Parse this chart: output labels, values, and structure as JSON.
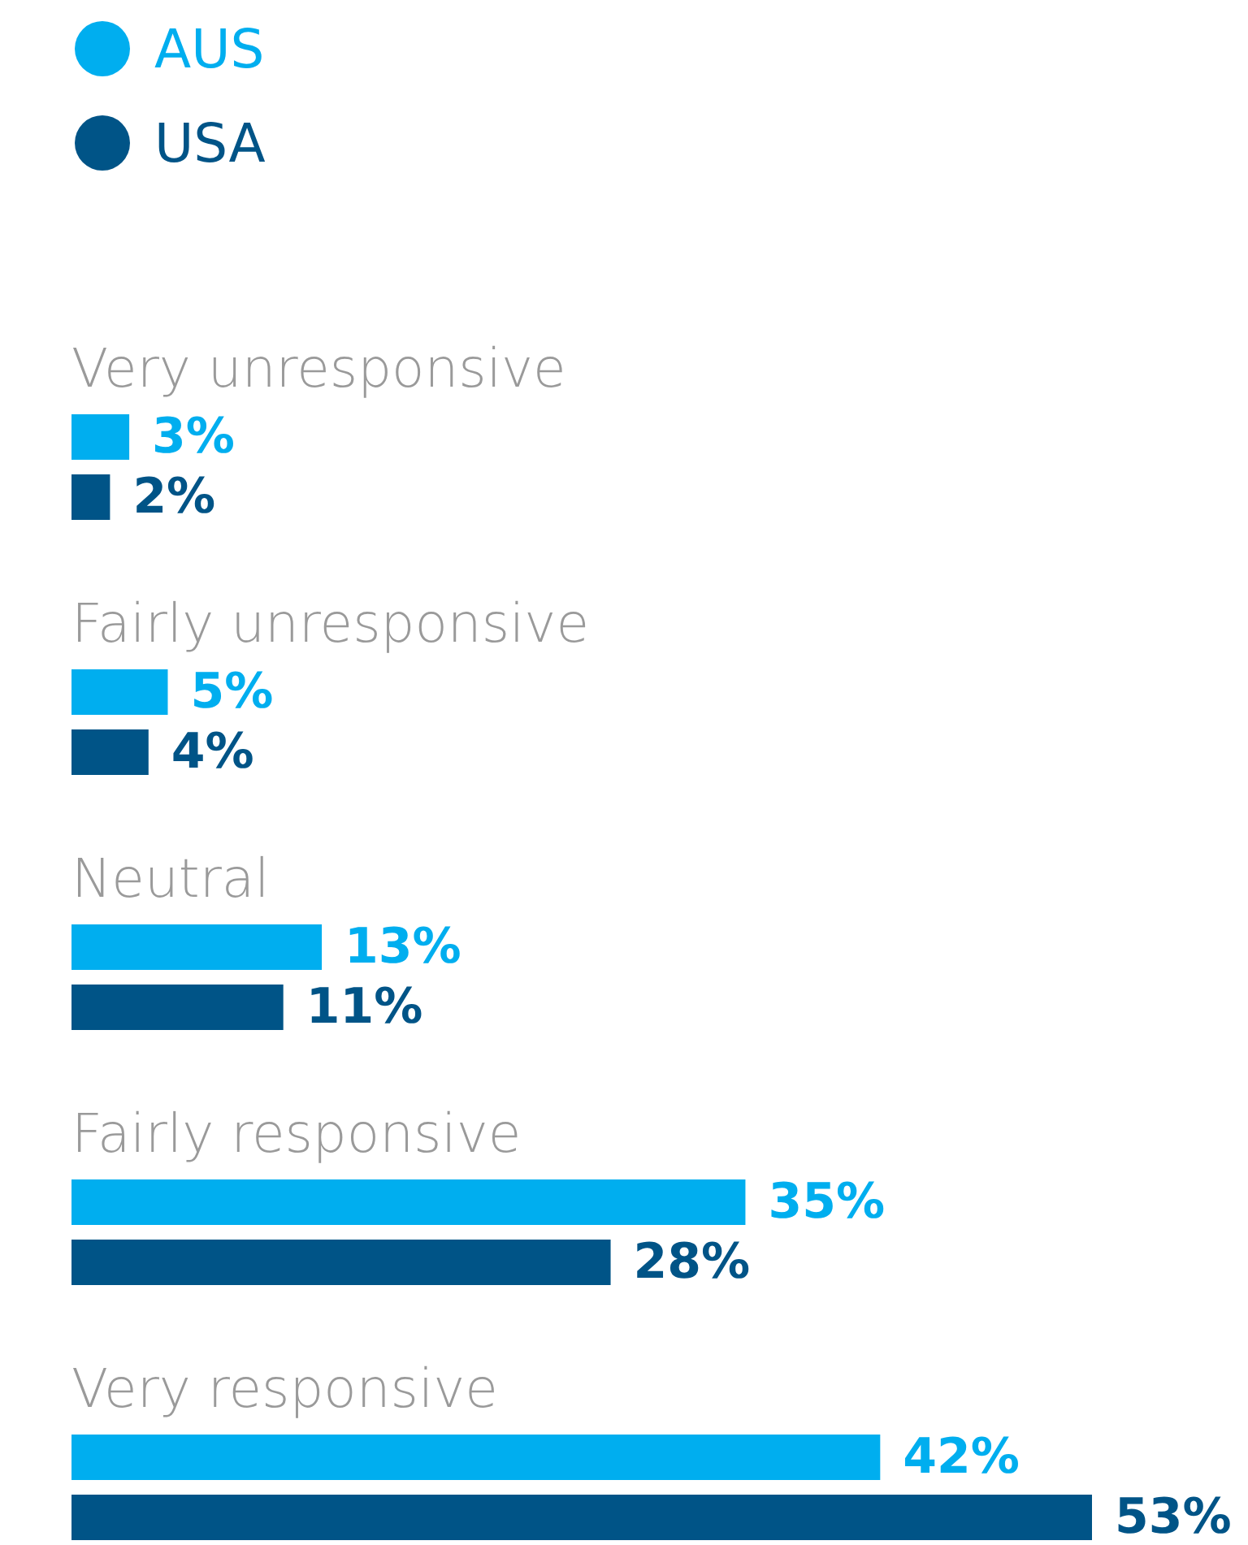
{
  "chart_data": {
    "type": "bar",
    "orientation": "horizontal",
    "legend": "top left",
    "categories": [
      "Very unresponsive",
      "Fairly unresponsive",
      "Neutral",
      "Fairly responsive",
      "Very responsive"
    ],
    "series": [
      {
        "name": "AUS",
        "color": "#00aeef",
        "values": [
          3,
          5,
          13,
          35,
          42
        ],
        "value_labels": [
          "3%",
          "5%",
          "13%",
          "35%",
          "42%"
        ]
      },
      {
        "name": "USA",
        "color": "#005487",
        "values": [
          2,
          4,
          11,
          28,
          53
        ],
        "value_labels": [
          "2%",
          "4%",
          "11%",
          "28%",
          "53%"
        ]
      }
    ]
  }
}
